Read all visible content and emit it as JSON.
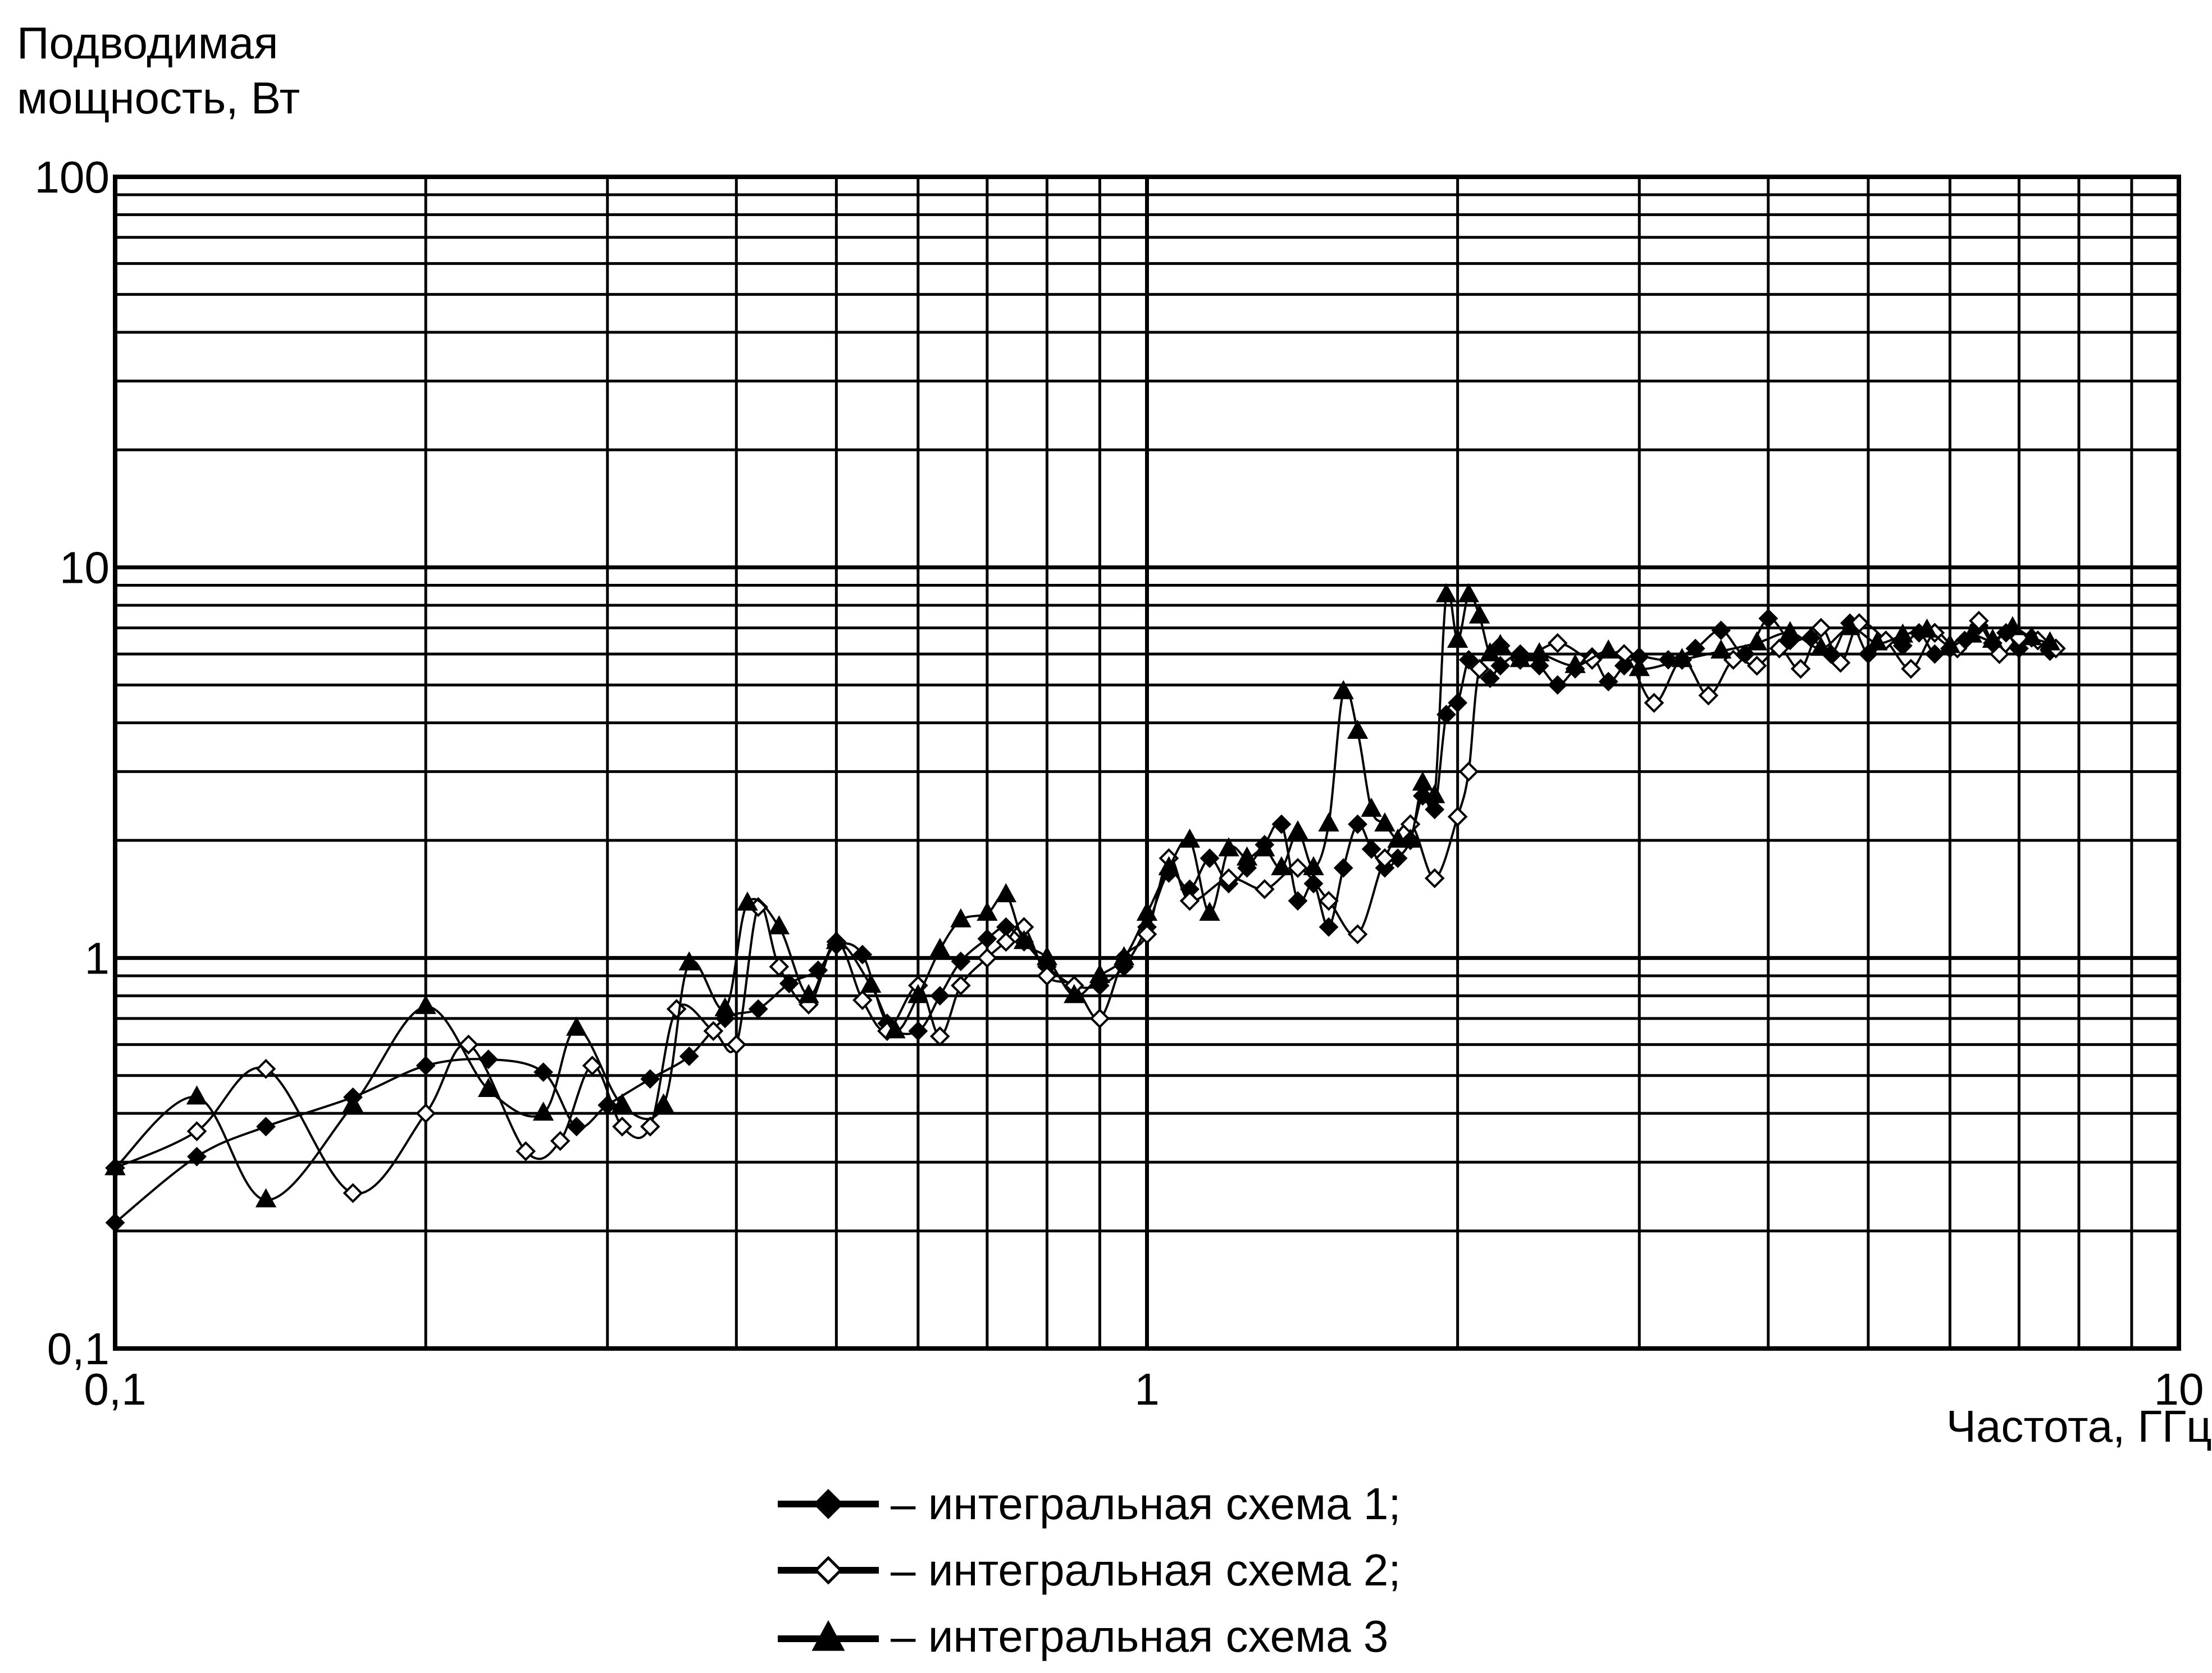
{
  "chart_data": {
    "type": "line",
    "ylabel": "Подводимая\nмощность, Вт",
    "xlabel": "Частота, ГГц",
    "xscale": "log",
    "yscale": "log",
    "xlim": [
      0.1,
      10
    ],
    "ylim": [
      0.1,
      100
    ],
    "x_ticks": [
      "0,1",
      "1",
      "10"
    ],
    "y_ticks": [
      "0,1",
      "1",
      "10",
      "100"
    ],
    "grid": true,
    "legend_position": "bottom-center",
    "series": [
      {
        "name": "– интегральная схема 1;",
        "marker": "filled-diamond",
        "color": "#000000",
        "x": [
          0.1,
          0.12,
          0.14,
          0.17,
          0.2,
          0.23,
          0.26,
          0.28,
          0.3,
          0.33,
          0.36,
          0.39,
          0.42,
          0.45,
          0.48,
          0.5,
          0.53,
          0.56,
          0.6,
          0.63,
          0.66,
          0.7,
          0.73,
          0.76,
          0.8,
          0.85,
          0.9,
          0.95,
          1.0,
          1.05,
          1.1,
          1.15,
          1.2,
          1.25,
          1.3,
          1.35,
          1.4,
          1.45,
          1.5,
          1.55,
          1.6,
          1.65,
          1.7,
          1.75,
          1.8,
          1.85,
          1.9,
          1.95,
          2.0,
          2.05,
          2.1,
          2.15,
          2.2,
          2.3,
          2.4,
          2.5,
          2.6,
          2.7,
          2.8,
          2.9,
          3.0,
          3.2,
          3.4,
          3.6,
          3.8,
          4.0,
          4.2,
          4.4,
          4.6,
          4.8,
          5.0,
          5.2,
          5.4,
          5.6,
          5.8,
          6.0,
          6.2,
          6.4,
          6.6,
          6.8,
          7.0,
          7.2,
          7.5
        ],
        "y": [
          0.21,
          0.31,
          0.37,
          0.44,
          0.53,
          0.55,
          0.51,
          0.37,
          0.42,
          0.49,
          0.56,
          0.7,
          0.74,
          0.86,
          0.93,
          1.08,
          1.02,
          0.68,
          0.65,
          0.8,
          0.98,
          1.12,
          1.2,
          1.1,
          0.95,
          0.85,
          0.85,
          0.95,
          1.2,
          1.65,
          1.5,
          1.8,
          1.55,
          1.7,
          1.95,
          2.2,
          1.4,
          1.55,
          1.2,
          1.7,
          2.2,
          1.9,
          1.7,
          1.8,
          2.0,
          2.6,
          2.4,
          4.2,
          4.5,
          5.8,
          5.5,
          5.2,
          5.6,
          6.0,
          5.6,
          5.0,
          5.5,
          5.9,
          5.1,
          5.6,
          5.9,
          5.8,
          6.2,
          6.9,
          6.0,
          7.4,
          6.5,
          6.6,
          6.0,
          7.2,
          6.0,
          6.5,
          6.3,
          6.8,
          6.0,
          6.2,
          6.5,
          7.1,
          6.4,
          6.8,
          6.2,
          6.6,
          6.1
        ]
      },
      {
        "name": "– интегральная схема 2;",
        "marker": "open-diamond",
        "color": "#000000",
        "x": [
          0.1,
          0.12,
          0.14,
          0.17,
          0.2,
          0.22,
          0.25,
          0.27,
          0.29,
          0.31,
          0.33,
          0.35,
          0.38,
          0.4,
          0.42,
          0.44,
          0.47,
          0.5,
          0.53,
          0.56,
          0.6,
          0.63,
          0.66,
          0.7,
          0.73,
          0.76,
          0.8,
          0.85,
          0.9,
          0.95,
          1.0,
          1.05,
          1.1,
          1.2,
          1.3,
          1.4,
          1.5,
          1.6,
          1.7,
          1.8,
          1.9,
          2.0,
          2.05,
          2.1,
          2.2,
          2.3,
          2.5,
          2.7,
          2.9,
          3.1,
          3.3,
          3.5,
          3.7,
          3.9,
          4.1,
          4.3,
          4.5,
          4.7,
          4.9,
          5.2,
          5.5,
          5.8,
          6.1,
          6.4,
          6.7,
          7.0,
          7.3,
          7.6
        ],
        "y": [
          0.29,
          0.36,
          0.52,
          0.25,
          0.4,
          0.6,
          0.32,
          0.34,
          0.53,
          0.37,
          0.37,
          0.74,
          0.65,
          0.6,
          1.35,
          0.95,
          0.76,
          1.1,
          0.78,
          0.65,
          0.85,
          0.63,
          0.85,
          1.0,
          1.1,
          1.2,
          0.9,
          0.85,
          0.7,
          1.0,
          1.15,
          1.8,
          1.4,
          1.6,
          1.5,
          1.7,
          1.4,
          1.15,
          1.8,
          2.2,
          1.6,
          2.3,
          3.0,
          5.5,
          6.3,
          5.8,
          6.4,
          5.8,
          6.0,
          4.5,
          5.8,
          4.7,
          5.8,
          5.6,
          6.2,
          5.5,
          7.0,
          5.7,
          7.2,
          6.5,
          5.5,
          6.8,
          6.2,
          7.3,
          6.0,
          6.6,
          6.5,
          6.2
        ]
      },
      {
        "name": "– интегральная схема 3",
        "marker": "filled-triangle",
        "color": "#000000",
        "x": [
          0.1,
          0.12,
          0.14,
          0.17,
          0.2,
          0.23,
          0.26,
          0.28,
          0.31,
          0.34,
          0.36,
          0.39,
          0.41,
          0.44,
          0.47,
          0.5,
          0.54,
          0.57,
          0.6,
          0.63,
          0.66,
          0.7,
          0.73,
          0.76,
          0.8,
          0.85,
          0.9,
          0.95,
          1.0,
          1.05,
          1.1,
          1.15,
          1.2,
          1.25,
          1.3,
          1.35,
          1.4,
          1.45,
          1.5,
          1.55,
          1.6,
          1.65,
          1.7,
          1.75,
          1.8,
          1.85,
          1.9,
          1.95,
          2.0,
          2.05,
          2.1,
          2.15,
          2.2,
          2.3,
          2.4,
          2.6,
          2.8,
          3.0,
          3.3,
          3.6,
          3.9,
          4.2,
          4.5,
          4.8,
          5.1,
          5.4,
          5.7,
          6.0,
          6.3,
          6.6,
          6.9,
          7.2,
          7.5
        ],
        "y": [
          0.29,
          0.44,
          0.24,
          0.42,
          0.75,
          0.46,
          0.4,
          0.66,
          0.42,
          0.42,
          0.97,
          0.74,
          1.38,
          1.2,
          0.8,
          1.1,
          0.85,
          0.65,
          0.8,
          1.05,
          1.25,
          1.3,
          1.45,
          1.1,
          1.0,
          0.8,
          0.9,
          1.0,
          1.3,
          1.7,
          2.0,
          1.3,
          1.9,
          1.8,
          1.9,
          1.7,
          2.1,
          1.7,
          2.2,
          4.8,
          3.8,
          2.4,
          2.2,
          2.0,
          2.0,
          2.8,
          2.6,
          8.5,
          6.5,
          8.5,
          7.5,
          6.0,
          6.3,
          5.8,
          6.0,
          5.6,
          6.1,
          5.5,
          5.8,
          6.1,
          6.4,
          6.8,
          6.2,
          7.0,
          6.4,
          6.7,
          6.9,
          6.3,
          6.7,
          6.5,
          7.0,
          6.6,
          6.4
        ]
      }
    ]
  }
}
